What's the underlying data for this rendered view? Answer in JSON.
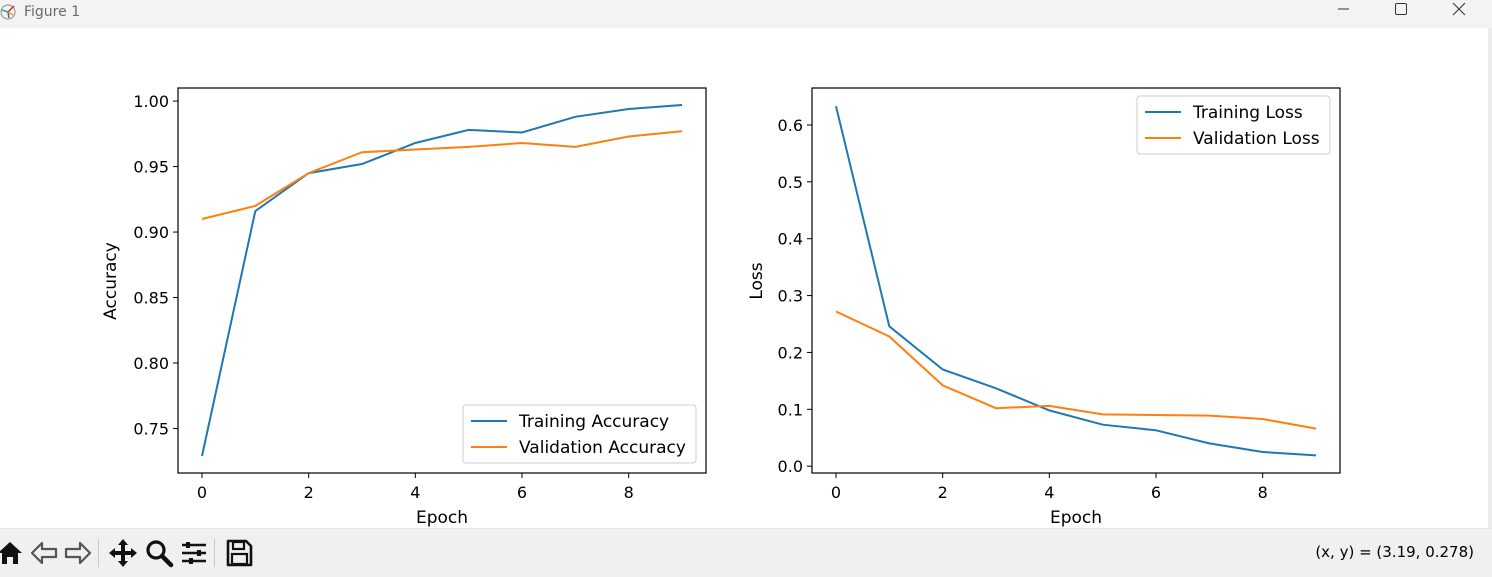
{
  "window": {
    "title": "Figure 1"
  },
  "toolbar": {
    "buttons": [
      "home-icon",
      "back-icon",
      "forward-icon",
      "pan-icon",
      "zoom-icon",
      "configure-subplots-icon",
      "save-icon"
    ],
    "coordinates": "(x, y) = (3.19, 0.278)"
  },
  "colors": {
    "training": "#1f77b4",
    "validation": "#ff7f0e"
  },
  "chart_data": [
    {
      "type": "line",
      "title": "",
      "xlabel": "Epoch",
      "ylabel": "Accuracy",
      "x": [
        0,
        1,
        2,
        3,
        4,
        5,
        6,
        7,
        8,
        9
      ],
      "xlim": [
        -0.45,
        9.45
      ],
      "ylim": [
        0.716,
        1.01
      ],
      "xticks": [
        0,
        2,
        4,
        6,
        8
      ],
      "yticks": [
        0.75,
        0.8,
        0.85,
        0.9,
        0.95,
        1.0
      ],
      "ytick_labels": [
        "0.75",
        "0.80",
        "0.85",
        "0.90",
        "0.95",
        "1.00"
      ],
      "grid": false,
      "legend": "lower right",
      "series": [
        {
          "name": "Training Accuracy",
          "color": "#1f77b4",
          "values": [
            0.729,
            0.916,
            0.945,
            0.952,
            0.968,
            0.978,
            0.976,
            0.988,
            0.994,
            0.997
          ]
        },
        {
          "name": "Validation Accuracy",
          "color": "#ff7f0e",
          "values": [
            0.91,
            0.92,
            0.945,
            0.961,
            0.963,
            0.965,
            0.968,
            0.965,
            0.973,
            0.977
          ]
        }
      ]
    },
    {
      "type": "line",
      "title": "",
      "xlabel": "Epoch",
      "ylabel": "Loss",
      "x": [
        0,
        1,
        2,
        3,
        4,
        5,
        6,
        7,
        8,
        9
      ],
      "xlim": [
        -0.45,
        9.45
      ],
      "ylim": [
        -0.012,
        0.665
      ],
      "xticks": [
        0,
        2,
        4,
        6,
        8
      ],
      "yticks": [
        0.0,
        0.1,
        0.2,
        0.3,
        0.4,
        0.5,
        0.6
      ],
      "ytick_labels": [
        "0.0",
        "0.1",
        "0.2",
        "0.3",
        "0.4",
        "0.5",
        "0.6"
      ],
      "grid": false,
      "legend": "upper right",
      "series": [
        {
          "name": "Training Loss",
          "color": "#1f77b4",
          "values": [
            0.633,
            0.246,
            0.17,
            0.137,
            0.098,
            0.073,
            0.063,
            0.04,
            0.025,
            0.019
          ]
        },
        {
          "name": "Validation Loss",
          "color": "#ff7f0e",
          "values": [
            0.272,
            0.228,
            0.142,
            0.102,
            0.106,
            0.091,
            0.09,
            0.089,
            0.083,
            0.066
          ]
        }
      ]
    }
  ]
}
